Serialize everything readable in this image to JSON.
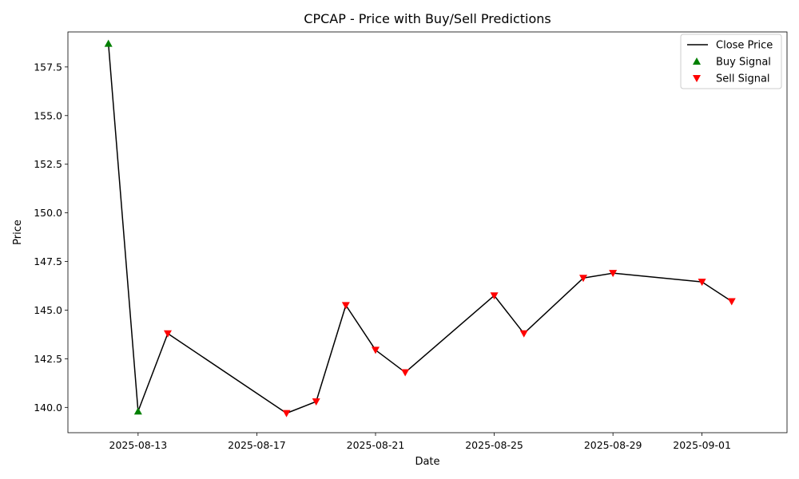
{
  "chart_data": {
    "type": "line",
    "title": "CPCAP - Price with Buy/Sell Predictions",
    "xlabel": "Date",
    "ylabel": "Price",
    "xlim": [
      "2025-08-10T15:15",
      "2025-09-03T20:45"
    ],
    "ylim": [
      138.7,
      159.3
    ],
    "x_ticks": [
      "2025-08-13",
      "2025-08-17",
      "2025-08-21",
      "2025-08-25",
      "2025-08-29",
      "2025-09-01"
    ],
    "y_ticks": [
      140.0,
      142.5,
      145.0,
      147.5,
      150.0,
      152.5,
      155.0,
      157.5
    ],
    "grid": false,
    "legend_position": "upper right",
    "series": [
      {
        "name": "Close Price",
        "color": "#000000",
        "x": [
          "2025-08-12",
          "2025-08-13",
          "2025-08-14",
          "2025-08-18",
          "2025-08-19",
          "2025-08-20",
          "2025-08-21",
          "2025-08-22",
          "2025-08-25",
          "2025-08-26",
          "2025-08-28",
          "2025-08-29",
          "2025-09-01",
          "2025-09-02"
        ],
        "y": [
          158.7,
          139.8,
          143.8,
          139.7,
          140.3,
          145.25,
          142.95,
          141.8,
          145.75,
          143.8,
          146.65,
          146.9,
          146.45,
          145.45
        ]
      }
    ],
    "signals": [
      {
        "name": "Buy Signal",
        "marker": "triangle-up",
        "color": "#008000",
        "x": [
          "2025-08-12",
          "2025-08-13"
        ],
        "y": [
          158.7,
          139.8
        ]
      },
      {
        "name": "Sell Signal",
        "marker": "triangle-down",
        "color": "#ff0000",
        "x": [
          "2025-08-14",
          "2025-08-18",
          "2025-08-19",
          "2025-08-20",
          "2025-08-21",
          "2025-08-22",
          "2025-08-25",
          "2025-08-26",
          "2025-08-28",
          "2025-08-29",
          "2025-09-01",
          "2025-09-02"
        ],
        "y": [
          143.8,
          139.7,
          140.3,
          145.25,
          142.95,
          141.8,
          145.75,
          143.8,
          146.65,
          146.9,
          146.45,
          145.45
        ]
      }
    ]
  }
}
